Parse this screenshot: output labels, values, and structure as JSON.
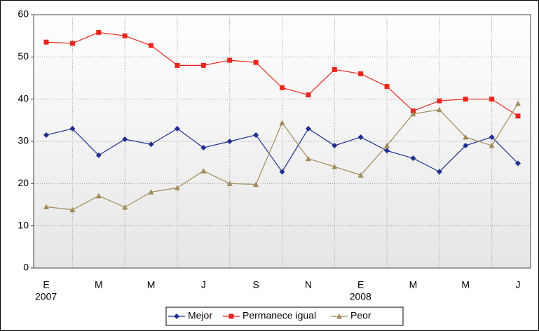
{
  "chart_data": {
    "type": "line",
    "categories": [
      [
        "E",
        "2007"
      ],
      null,
      [
        "M"
      ],
      null,
      [
        "M"
      ],
      null,
      [
        "J"
      ],
      null,
      [
        "S"
      ],
      null,
      [
        "N"
      ],
      null,
      [
        "E",
        "2008"
      ],
      null,
      [
        "M"
      ],
      null,
      [
        "M"
      ],
      null,
      [
        "J"
      ]
    ],
    "series": [
      {
        "name": "Mejor",
        "color": "#1f2f8f",
        "marker": "diamond",
        "values": [
          31.5,
          33,
          26.7,
          30.5,
          29.3,
          33,
          28.5,
          30,
          31.5,
          22.8,
          33,
          29,
          31,
          27.8,
          26,
          22.8,
          29,
          31,
          24.8
        ]
      },
      {
        "name": "Permanece igual",
        "color": "#e8261c",
        "marker": "square",
        "values": [
          53.5,
          53.2,
          55.8,
          55,
          52.7,
          48,
          48,
          49.2,
          48.7,
          42.7,
          41,
          47,
          46,
          43,
          37.2,
          39.6,
          40,
          40,
          36
        ]
      },
      {
        "name": "Peor",
        "color": "#a08a5a",
        "marker": "triangle",
        "values": [
          14.5,
          13.8,
          17.1,
          14.4,
          18,
          19,
          23,
          20,
          19.8,
          34.4,
          25.9,
          24,
          22,
          29,
          36.5,
          37.5,
          31,
          29,
          39
        ]
      }
    ],
    "ylim": [
      0,
      60
    ],
    "yticks": [
      0,
      10,
      20,
      30,
      40,
      50,
      60
    ],
    "grid": true,
    "legend": "bottom"
  }
}
